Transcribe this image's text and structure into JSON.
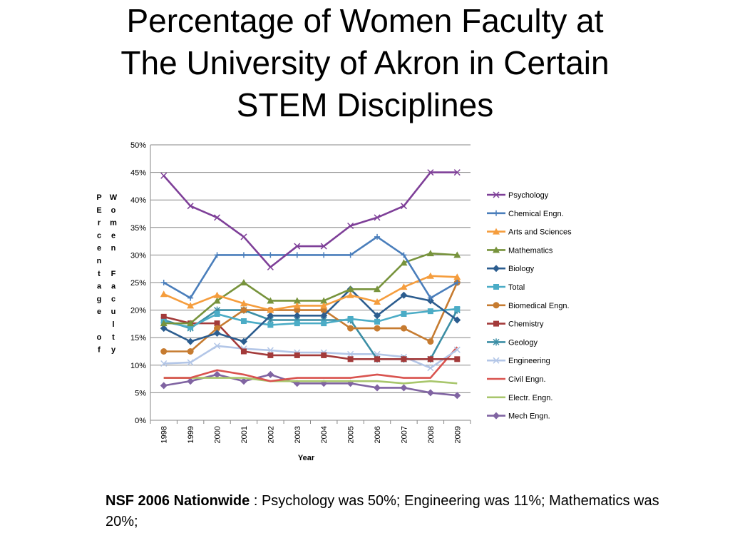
{
  "title": {
    "line1": "Percentage of Women Faculty at",
    "line2": "The University of Akron in Certain",
    "line3": "STEM Disciplines"
  },
  "note": {
    "bold": "NSF 2006 Nationwide",
    "text": " : Psychology was 50%; Engineering was 11%; Mathematics was 20%;"
  },
  "chart_data": {
    "type": "line",
    "xlabel": "Year",
    "ylabel_left": "PErcentage of",
    "ylabel_right": "Women Faculty",
    "ylim": [
      0,
      50
    ],
    "ytick_labels": [
      "0%",
      "5%",
      "10%",
      "15%",
      "20%",
      "25%",
      "30%",
      "35%",
      "40%",
      "45%",
      "50%"
    ],
    "x": [
      "1998",
      "1999",
      "2000",
      "2001",
      "2002",
      "2003",
      "2004",
      "2005",
      "2006",
      "2007",
      "2008",
      "2009"
    ],
    "grid": true,
    "legend": "right",
    "series": [
      {
        "name": "Psychology",
        "color": "#7e3f98",
        "marker": "x",
        "values": [
          44.4,
          38.9,
          36.8,
          33.3,
          27.8,
          31.6,
          31.6,
          35.3,
          36.8,
          38.9,
          45.0,
          45.0
        ]
      },
      {
        "name": "Chemical Engn.",
        "color": "#4a7ebb",
        "marker": "plus",
        "values": [
          25.0,
          22.2,
          30.0,
          30.0,
          30.0,
          30.0,
          30.0,
          30.0,
          33.3,
          30.0,
          22.2,
          25.0
        ]
      },
      {
        "name": "Arts and Sciences",
        "color": "#f59d3d",
        "marker": "triangle",
        "values": [
          22.9,
          20.8,
          22.7,
          21.2,
          20.0,
          20.8,
          20.8,
          22.7,
          21.5,
          24.2,
          26.2,
          26.0
        ]
      },
      {
        "name": "Mathematics",
        "color": "#77933c",
        "marker": "triangle",
        "values": [
          17.6,
          17.6,
          21.7,
          25.0,
          21.7,
          21.7,
          21.7,
          23.8,
          23.8,
          28.6,
          30.3,
          30.0
        ]
      },
      {
        "name": "Biology",
        "color": "#2c5d8f",
        "marker": "diamond",
        "values": [
          16.7,
          14.3,
          15.8,
          14.3,
          19.0,
          19.0,
          19.0,
          23.8,
          19.0,
          22.7,
          21.7,
          18.2
        ]
      },
      {
        "name": "Total",
        "color": "#4bacc6",
        "marker": "square",
        "values": [
          17.9,
          16.9,
          19.3,
          18.0,
          17.3,
          17.6,
          17.6,
          18.4,
          17.9,
          19.3,
          19.8,
          20.2
        ]
      },
      {
        "name": "Biomedical Engn.",
        "color": "#c67b30",
        "marker": "circle",
        "values": [
          12.5,
          12.5,
          16.7,
          20.0,
          20.0,
          20.0,
          20.0,
          16.7,
          16.7,
          16.7,
          14.3,
          25.0
        ]
      },
      {
        "name": "Chemistry",
        "color": "#a33a3a",
        "marker": "square",
        "values": [
          18.8,
          17.6,
          17.6,
          12.5,
          11.8,
          11.8,
          11.8,
          11.1,
          11.1,
          11.1,
          11.1,
          11.1
        ]
      },
      {
        "name": "Geology",
        "color": "#3b8ea5",
        "marker": "asterisk",
        "values": [
          18.2,
          16.7,
          20.0,
          20.0,
          18.2,
          18.2,
          18.2,
          18.2,
          11.1,
          11.1,
          11.1,
          20.0
        ]
      },
      {
        "name": "Engineering",
        "color": "#b3c6e7",
        "marker": "x",
        "values": [
          10.3,
          10.5,
          13.5,
          13.0,
          12.7,
          12.3,
          12.3,
          12.0,
          12.0,
          11.5,
          9.5,
          12.8
        ]
      },
      {
        "name": "Civil Engn.",
        "color": "#d9534f",
        "marker": "none",
        "values": [
          7.7,
          7.7,
          9.1,
          8.3,
          7.1,
          7.7,
          7.7,
          7.7,
          8.3,
          7.7,
          7.7,
          13.3
        ]
      },
      {
        "name": "Electr. Engn.",
        "color": "#a8c66c",
        "marker": "none",
        "values": [
          7.7,
          7.7,
          7.7,
          7.7,
          7.1,
          7.1,
          7.1,
          7.1,
          7.1,
          6.7,
          7.1,
          6.7
        ]
      },
      {
        "name": "Mech Engn.",
        "color": "#8064a2",
        "marker": "diamond",
        "values": [
          6.3,
          7.1,
          8.3,
          7.1,
          8.3,
          6.7,
          6.7,
          6.7,
          5.9,
          5.9,
          5.0,
          4.5
        ]
      }
    ]
  }
}
